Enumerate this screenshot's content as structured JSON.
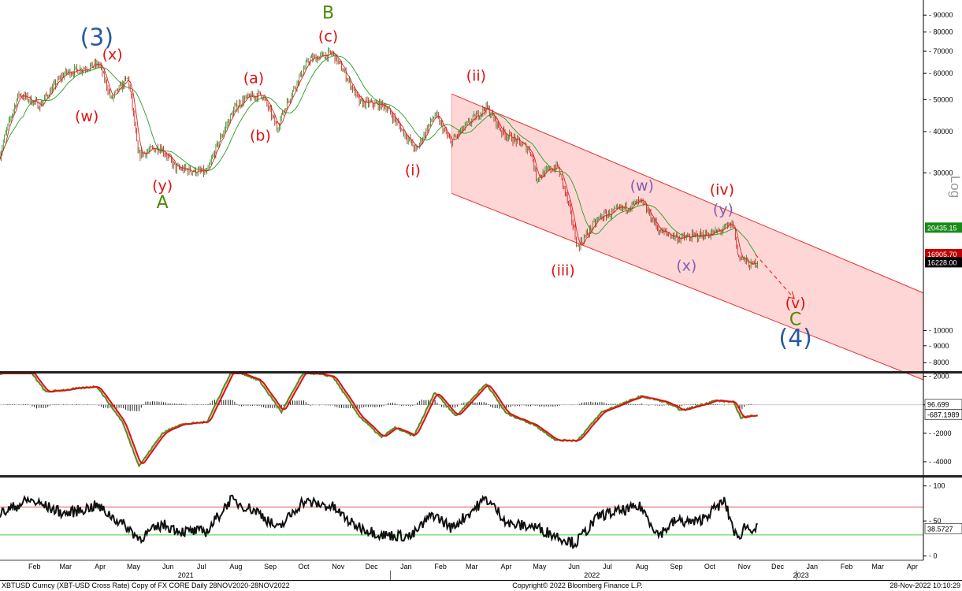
{
  "footer": {
    "left": "XBTUSD Curncy (XBT-USD Cross Rate) Copy of FX CORE  Daily 28NOV2020-28NOV2022",
    "center": "Copyright© 2022 Bloomberg Finance L.P.",
    "right": "28-Nov-2022 10:10:29"
  },
  "colors": {
    "candle_up": "#1a8a1a",
    "candle_down": "#d01010",
    "ma_fast": "#e02020",
    "ma_slow": "#20a020",
    "channel_fill": "#ffd6d6",
    "channel_line": "#e83030",
    "osc_green": "#5a8a20",
    "osc_red": "#e01010",
    "rsi_line": "#111111",
    "rsi_upper": "#e05050",
    "rsi_lower": "#40d040",
    "label_red": "#e01010",
    "label_green": "#4a8a00",
    "label_blue": "#2a5aa0",
    "label_purple": "#8060b0"
  },
  "chart_data": [
    {
      "type": "line",
      "panel": "price",
      "scale": "log",
      "ylabel": "Log",
      "ylim": [
        7500,
        100000
      ],
      "y_ticks": [
        8000,
        9000,
        10000,
        30000,
        40000,
        50000,
        60000,
        70000,
        80000,
        90000
      ],
      "y_tick_labels": [
        "8000",
        "9000",
        "10000",
        "30000",
        "40000",
        "50000",
        "60000",
        "70000",
        "80000",
        "90000"
      ],
      "x_start": "2021-01-15",
      "x_end": "2023-04-25",
      "series": [
        {
          "x": [
            "2021-01-15",
            "2021-02-01",
            "2021-02-20",
            "2021-03-14",
            "2021-04-14",
            "2021-04-25",
            "2021-05-10",
            "2021-05-19",
            "2021-06-08",
            "2021-06-22",
            "2021-07-20",
            "2021-08-14",
            "2021-08-22",
            "2021-09-07",
            "2021-09-21",
            "2021-10-20",
            "2021-11-10",
            "2021-12-04",
            "2021-12-27",
            "2022-01-10",
            "2022-01-24",
            "2022-02-10",
            "2022-02-24",
            "2022-03-28",
            "2022-04-11",
            "2022-05-07",
            "2022-05-12",
            "2022-05-31",
            "2022-06-18",
            "2022-07-08",
            "2022-08-14",
            "2022-08-31",
            "2022-09-19",
            "2022-10-21",
            "2022-11-05",
            "2022-11-09",
            "2022-11-21",
            "2022-11-27"
          ],
          "values": [
            34000,
            52000,
            48000,
            60000,
            64000,
            50000,
            58000,
            34000,
            36000,
            31000,
            30000,
            47000,
            50000,
            52000,
            41000,
            66000,
            69000,
            49000,
            48000,
            41000,
            35000,
            45000,
            37000,
            47500,
            40000,
            35000,
            29000,
            31500,
            17800,
            22000,
            24500,
            20000,
            19000,
            19800,
            21000,
            17000,
            15700,
            16228
          ]
        }
      ],
      "last_price_label": "16228.00",
      "ma_slow_value_label": "20435.15",
      "ma_fast_value_label": "16905.70",
      "channel": {
        "upper": [
          [
            "2022-02-25",
            52000
          ],
          [
            "2023-04-25",
            13000
          ]
        ],
        "lower": [
          [
            "2022-02-25",
            26000
          ],
          [
            "2023-04-25",
            7100
          ]
        ],
        "projection": [
          [
            "2022-11-25",
            17000
          ],
          [
            "2022-12-30",
            12500
          ]
        ]
      },
      "wave_labels": [
        {
          "text": "(3)",
          "x": "2021-04-12",
          "y": 73000,
          "color": "blue",
          "size": "large"
        },
        {
          "text": "(x)",
          "x": "2021-04-26",
          "y": 66000,
          "color": "red"
        },
        {
          "text": "(w)",
          "x": "2021-04-03",
          "y": 43000,
          "color": "red"
        },
        {
          "text": "(y)",
          "x": "2021-06-10",
          "y": 26500,
          "color": "red"
        },
        {
          "text": "A",
          "x": "2021-06-10",
          "y": 23500,
          "color": "green"
        },
        {
          "text": "(a)",
          "x": "2021-08-31",
          "y": 56000,
          "color": "red"
        },
        {
          "text": "(b)",
          "x": "2021-09-06",
          "y": 37500,
          "color": "red"
        },
        {
          "text": "B",
          "x": "2021-11-06",
          "y": 88000,
          "color": "green"
        },
        {
          "text": "(c)",
          "x": "2021-11-06",
          "y": 75000,
          "color": "red"
        },
        {
          "text": "(i)",
          "x": "2022-01-21",
          "y": 29500,
          "color": "red"
        },
        {
          "text": "(ii)",
          "x": "2022-03-19",
          "y": 57000,
          "color": "red"
        },
        {
          "text": "(iii)",
          "x": "2022-06-05",
          "y": 14700,
          "color": "red"
        },
        {
          "text": "(w)",
          "x": "2022-08-15",
          "y": 26500,
          "color": "purple"
        },
        {
          "text": "(x)",
          "x": "2022-09-24",
          "y": 15200,
          "color": "purple"
        },
        {
          "text": "(iv)",
          "x": "2022-10-26",
          "y": 25800,
          "color": "red"
        },
        {
          "text": "(y)",
          "x": "2022-10-27",
          "y": 22500,
          "color": "purple"
        },
        {
          "text": "(v)",
          "x": "2022-12-31",
          "y": 11700,
          "color": "red"
        },
        {
          "text": "C",
          "x": "2022-12-31",
          "y": 10400,
          "color": "green"
        },
        {
          "text": "(4)",
          "x": "2022-12-31",
          "y": 9000,
          "color": "blue",
          "size": "large"
        }
      ]
    },
    {
      "type": "line",
      "panel": "oscillator",
      "ylim": [
        -5000,
        2200
      ],
      "y_ticks": [
        -4000,
        -2000,
        0,
        2000
      ],
      "y_tick_labels": [
        "-4000",
        "-2000",
        "",
        "2000"
      ],
      "series": [
        {
          "x": [
            "2021-01-15",
            "2021-02-10",
            "2021-02-25",
            "2021-04-12",
            "2021-05-05",
            "2021-05-20",
            "2021-06-10",
            "2021-06-25",
            "2021-07-20",
            "2021-08-12",
            "2021-09-05",
            "2021-09-25",
            "2021-10-15",
            "2021-11-10",
            "2021-12-04",
            "2021-12-24",
            "2022-01-05",
            "2022-01-22",
            "2022-02-10",
            "2022-03-01",
            "2022-03-28",
            "2022-04-15",
            "2022-05-10",
            "2022-05-30",
            "2022-06-18",
            "2022-07-10",
            "2022-08-14",
            "2022-09-05",
            "2022-09-20",
            "2022-10-20",
            "2022-11-05",
            "2022-11-12",
            "2022-11-27"
          ],
          "values": [
            2200,
            2500,
            900,
            1300,
            -1200,
            -4300,
            -2000,
            -1400,
            -1200,
            2500,
            1700,
            -500,
            2300,
            2000,
            -800,
            -2300,
            -1600,
            -2200,
            900,
            -800,
            1500,
            -600,
            -1400,
            -2500,
            -2500,
            -500,
            600,
            200,
            -400,
            300,
            200,
            -900,
            -700
          ]
        }
      ],
      "value_labels": [
        "96.699",
        "-687.1989"
      ]
    },
    {
      "type": "line",
      "panel": "rsi",
      "ylim": [
        -5,
        112
      ],
      "y_ticks": [
        0,
        50,
        100
      ],
      "y_tick_labels": [
        "0",
        "50",
        "100"
      ],
      "levels": [
        70,
        30
      ],
      "series": [
        {
          "x": [
            "2021-01-15",
            "2021-02-10",
            "2021-03-15",
            "2021-04-12",
            "2021-05-10",
            "2021-05-20",
            "2021-06-10",
            "2021-06-28",
            "2021-07-20",
            "2021-08-10",
            "2021-09-05",
            "2021-09-22",
            "2021-10-14",
            "2021-11-10",
            "2021-11-28",
            "2021-12-24",
            "2022-01-20",
            "2022-02-08",
            "2022-02-25",
            "2022-03-28",
            "2022-04-18",
            "2022-05-10",
            "2022-05-28",
            "2022-06-16",
            "2022-07-08",
            "2022-08-14",
            "2022-08-30",
            "2022-09-14",
            "2022-10-04",
            "2022-10-28",
            "2022-11-09",
            "2022-11-15",
            "2022-11-27"
          ],
          "values": [
            60,
            80,
            60,
            72,
            40,
            25,
            45,
            35,
            35,
            80,
            62,
            38,
            78,
            70,
            45,
            30,
            28,
            60,
            40,
            82,
            45,
            42,
            30,
            18,
            58,
            70,
            30,
            50,
            48,
            78,
            22,
            42,
            38.57
          ]
        }
      ],
      "value_label": "38.5727"
    }
  ],
  "x_axis": {
    "months": [
      {
        "label": "Feb",
        "x": "2021-02-15"
      },
      {
        "label": "Mar",
        "x": "2021-03-15"
      },
      {
        "label": "Apr",
        "x": "2021-04-15"
      },
      {
        "label": "May",
        "x": "2021-05-15"
      },
      {
        "label": "Jun",
        "x": "2021-06-15"
      },
      {
        "label": "Jul",
        "x": "2021-07-15"
      },
      {
        "label": "Aug",
        "x": "2021-08-15"
      },
      {
        "label": "Sep",
        "x": "2021-09-15"
      },
      {
        "label": "Oct",
        "x": "2021-10-15"
      },
      {
        "label": "Nov",
        "x": "2021-11-15"
      },
      {
        "label": "Dec",
        "x": "2021-12-15"
      },
      {
        "label": "Jan",
        "x": "2022-01-15"
      },
      {
        "label": "Feb",
        "x": "2022-02-15"
      },
      {
        "label": "Mar",
        "x": "2022-03-15"
      },
      {
        "label": "Apr",
        "x": "2022-04-15"
      },
      {
        "label": "May",
        "x": "2022-05-15"
      },
      {
        "label": "Jun",
        "x": "2022-06-15"
      },
      {
        "label": "Jul",
        "x": "2022-07-15"
      },
      {
        "label": "Aug",
        "x": "2022-08-15"
      },
      {
        "label": "Sep",
        "x": "2022-09-15"
      },
      {
        "label": "Oct",
        "x": "2022-10-15"
      },
      {
        "label": "Nov",
        "x": "2022-11-15"
      },
      {
        "label": "Dec",
        "x": "2022-12-15"
      },
      {
        "label": "Jan",
        "x": "2023-01-15"
      },
      {
        "label": "Feb",
        "x": "2023-02-15"
      },
      {
        "label": "Mar",
        "x": "2023-03-15"
      },
      {
        "label": "Apr",
        "x": "2023-04-15"
      }
    ],
    "years": [
      {
        "label": "2021",
        "x": "2021-07-01"
      },
      {
        "label": "2022",
        "x": "2022-07-01"
      },
      {
        "label": "2023",
        "x": "2023-01-05"
      }
    ]
  }
}
